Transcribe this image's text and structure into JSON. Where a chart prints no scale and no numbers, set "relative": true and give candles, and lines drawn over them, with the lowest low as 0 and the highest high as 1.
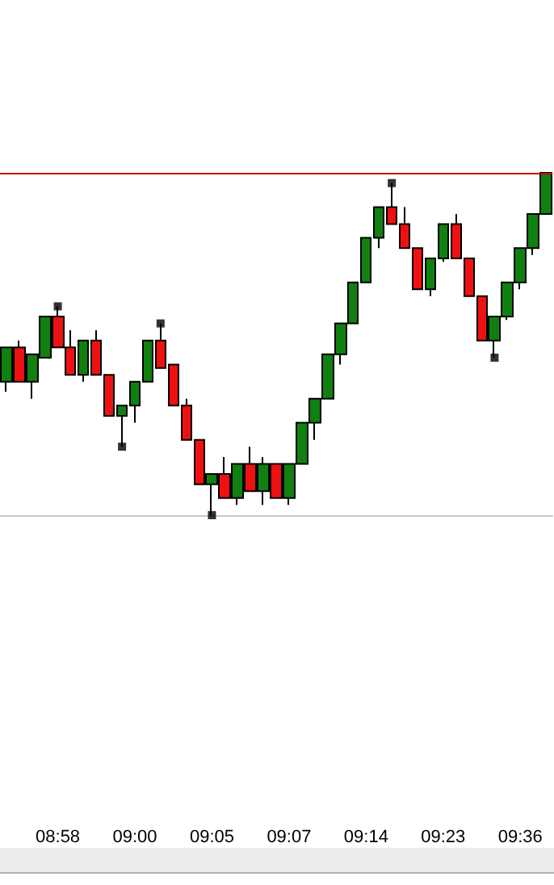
{
  "chart_data": {
    "type": "candlestick",
    "relative": true,
    "tick_labels": "x",
    "grid": false,
    "categories": [
      null,
      null,
      null,
      null,
      "08:58",
      null,
      null,
      null,
      null,
      null,
      "09:00",
      null,
      null,
      null,
      null,
      null,
      "09:05",
      null,
      null,
      null,
      null,
      null,
      "09:07",
      null,
      null,
      null,
      null,
      null,
      "09:14",
      null,
      null,
      null,
      null,
      null,
      "09:23",
      null,
      null,
      null,
      null,
      null,
      "09:36",
      null,
      null
    ],
    "series": [
      {
        "ohlc": [
          [
            0.39,
            0.49,
            0.36,
            0.49
          ],
          [
            0.49,
            0.51,
            0.39,
            0.39
          ],
          [
            0.39,
            0.47,
            0.34,
            0.47
          ],
          [
            0.46,
            0.58,
            0.46,
            0.58
          ],
          [
            0.58,
            0.61,
            0.49,
            0.49
          ],
          [
            0.49,
            0.54,
            0.41,
            0.41
          ],
          [
            0.41,
            0.51,
            0.39,
            0.51
          ],
          [
            0.51,
            0.54,
            0.41,
            0.41
          ],
          [
            0.41,
            0.41,
            0.29,
            0.29
          ],
          [
            0.29,
            0.32,
            0.2,
            0.32
          ],
          [
            0.32,
            0.39,
            0.27,
            0.39
          ],
          [
            0.39,
            0.51,
            0.39,
            0.51
          ],
          [
            0.51,
            0.56,
            0.43,
            0.43
          ],
          [
            0.44,
            0.44,
            0.32,
            0.32
          ],
          [
            0.32,
            0.34,
            0.22,
            0.22
          ],
          [
            0.22,
            0.22,
            0.09,
            0.09
          ],
          [
            0.09,
            0.12,
            0,
            0.12
          ],
          [
            0.12,
            0.17,
            0.05,
            0.05
          ],
          [
            0.05,
            0.15,
            0.03,
            0.15
          ],
          [
            0.15,
            0.2,
            0.07,
            0.07
          ],
          [
            0.07,
            0.17,
            0.03,
            0.15
          ],
          [
            0.15,
            0.15,
            0.05,
            0.05
          ],
          [
            0.05,
            0.15,
            0.03,
            0.15
          ],
          [
            0.15,
            0.27,
            0.15,
            0.27
          ],
          [
            0.27,
            0.34,
            0.22,
            0.34
          ],
          [
            0.34,
            0.47,
            0.34,
            0.47
          ],
          [
            0.47,
            0.56,
            0.44,
            0.56
          ],
          [
            0.56,
            0.68,
            0.56,
            0.68
          ],
          [
            0.68,
            0.81,
            0.68,
            0.81
          ],
          [
            0.81,
            0.9,
            0.78,
            0.9
          ],
          [
            0.9,
            0.97,
            0.85,
            0.85
          ],
          [
            0.85,
            0.9,
            0.78,
            0.78
          ],
          [
            0.78,
            0.78,
            0.66,
            0.66
          ],
          [
            0.66,
            0.75,
            0.64,
            0.75
          ],
          [
            0.75,
            0.85,
            0.74,
            0.85
          ],
          [
            0.85,
            0.88,
            0.75,
            0.75
          ],
          [
            0.75,
            0.75,
            0.64,
            0.64
          ],
          [
            0.64,
            0.64,
            0.51,
            0.51
          ],
          [
            0.51,
            0.58,
            0.46,
            0.58
          ],
          [
            0.58,
            0.68,
            0.57,
            0.68
          ],
          [
            0.68,
            0.78,
            0.66,
            0.78
          ],
          [
            0.78,
            0.88,
            0.76,
            0.88
          ],
          [
            0.88,
            1,
            0.88,
            1
          ]
        ],
        "colors": [
          "#108010",
          "#ee1111",
          "#108010",
          "#108010",
          "#ee1111",
          "#ee1111",
          "#108010",
          "#ee1111",
          "#ee1111",
          "#108010",
          "#108010",
          "#108010",
          "#ee1111",
          "#ee1111",
          "#ee1111",
          "#ee1111",
          "#108010",
          "#ee1111",
          "#108010",
          "#ee1111",
          "#108010",
          "#ee1111",
          "#108010",
          "#108010",
          "#108010",
          "#108010",
          "#108010",
          "#108010",
          "#108010",
          "#108010",
          "#ee1111",
          "#ee1111",
          "#ee1111",
          "#108010",
          "#108010",
          "#ee1111",
          "#ee1111",
          "#ee1111",
          "#108010",
          "#108010",
          "#108010",
          "#108010",
          "#108010"
        ]
      },
      {
        "type": "scatter",
        "color": "#000000",
        "marker": "square",
        "values": [
          null,
          null,
          null,
          null,
          0.61,
          null,
          null,
          null,
          null,
          0.2,
          null,
          null,
          0.56,
          null,
          null,
          null,
          0,
          null,
          null,
          null,
          null,
          null,
          null,
          null,
          null,
          null,
          null,
          null,
          null,
          null,
          0.97,
          null,
          null,
          null,
          null,
          null,
          null,
          null,
          0.46,
          null,
          null,
          null,
          null
        ]
      }
    ],
    "ref_lines": [
      {
        "axis": "y",
        "value": 1,
        "label": null,
        "color": "#cc0000",
        "line_style": "solid"
      }
    ]
  }
}
